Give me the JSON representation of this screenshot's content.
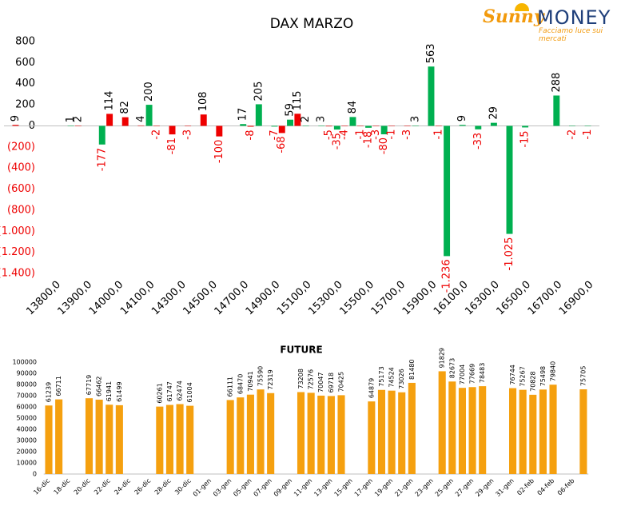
{
  "logo": {
    "brand": "Sunny",
    "name": "MONEY",
    "tagline": "Facciamo luce sui mercati"
  },
  "chart_data": [
    {
      "type": "bar",
      "title": "DAX MARZO",
      "categories": [
        null,
        null,
        null,
        "13800,0",
        null,
        "13900,0",
        null,
        "14000,0",
        null,
        "14100,0",
        null,
        "14300,0",
        null,
        "14500,0",
        null,
        "14700,0",
        null,
        "14900,0",
        null,
        "15100,0",
        null,
        "15300,0",
        null,
        "15500,0",
        null,
        "15700,0",
        null,
        "15900,0",
        null,
        "16100,0",
        null,
        "16300,0",
        null,
        "16500,0",
        null,
        "16700,0",
        null,
        "16900,0"
      ],
      "series": [
        {
          "color": "#00b050",
          "values": [
            null,
            null,
            null,
            null,
            1,
            null,
            -177,
            null,
            null,
            200,
            null,
            null,
            null,
            null,
            null,
            17,
            205,
            -7,
            59,
            2,
            3,
            -35,
            84,
            -18,
            -80,
            null,
            3,
            563,
            -1236,
            9,
            -33,
            29,
            -1025,
            -15,
            null,
            288,
            -2,
            -1
          ],
          "value_labels": [
            null,
            null,
            null,
            null,
            "1",
            null,
            "-177",
            null,
            null,
            "200",
            null,
            null,
            null,
            null,
            null,
            "17",
            "205",
            "-7",
            "59",
            "2",
            "3",
            "-35",
            "84",
            "-18",
            "-80",
            null,
            "3",
            "563",
            "-1.236",
            "9",
            "-33",
            "29",
            "-1.025",
            "-15",
            null,
            "288",
            "-2",
            "-1"
          ]
        },
        {
          "color": "#ee0000",
          "values": [
            9,
            null,
            null,
            null,
            2,
            null,
            114,
            82,
            4,
            -2,
            -81,
            -3,
            108,
            -100,
            null,
            -8,
            null,
            -68,
            115,
            null,
            -5,
            -4,
            -1,
            -3,
            -1,
            -3,
            null,
            -1,
            null,
            null,
            null,
            null,
            null,
            null,
            null,
            null,
            null,
            null
          ]
        }
      ],
      "negative_color": "#ee0000",
      "ylim": [
        -1400,
        800
      ],
      "yticks": [
        {
          "value": -1400,
          "label": "(1.400)"
        },
        {
          "value": -1200,
          "label": "(1.200)"
        },
        {
          "value": -1000,
          "label": "(1.000)"
        },
        {
          "value": -800,
          "label": "(800)"
        },
        {
          "value": -600,
          "label": "(600)"
        },
        {
          "value": -400,
          "label": "(400)"
        },
        {
          "value": -200,
          "label": "(200)"
        },
        0,
        200,
        400,
        600,
        800
      ],
      "grid": false
    },
    {
      "type": "bar",
      "title": "FUTURE",
      "categories": [
        "16-dic",
        null,
        "18-dic",
        null,
        "20-dic",
        null,
        "22-dic",
        null,
        "24-dic",
        null,
        "26-dic",
        null,
        "28-dic",
        null,
        "30-dic",
        null,
        "01-gen",
        null,
        "03-gen",
        null,
        "05-gen",
        null,
        "07-gen",
        null,
        "09-gen",
        null,
        "11-gen",
        null,
        "13-gen",
        null,
        "15-gen",
        null,
        "17-gen",
        null,
        "19-gen",
        null,
        "21-gen",
        null,
        "23-gen",
        null,
        "25-gen",
        null,
        "27-gen",
        null,
        "29-gen",
        null,
        "31-gen",
        null,
        "02-feb",
        null,
        "04-feb",
        null,
        "06-feb",
        null
      ],
      "series": [
        {
          "color": "#f5a00f",
          "values": [
            61239,
            66711,
            null,
            null,
            67719,
            66462,
            61941,
            61499,
            null,
            null,
            null,
            60261,
            61747,
            62474,
            61004,
            null,
            null,
            null,
            66111,
            68470,
            70941,
            75590,
            72319,
            null,
            null,
            73208,
            72576,
            70047,
            69718,
            70425,
            null,
            null,
            64879,
            75173,
            74524,
            73026,
            81480,
            null,
            null,
            91829,
            82673,
            77004,
            77669,
            78483,
            null,
            null,
            76744,
            75267,
            70828,
            75498,
            79840,
            null,
            null,
            75705
          ]
        }
      ],
      "ylim": [
        0,
        100000
      ],
      "yticks": [
        0,
        10000,
        20000,
        30000,
        40000,
        50000,
        60000,
        70000,
        80000,
        90000,
        100000
      ],
      "grid": false
    }
  ]
}
